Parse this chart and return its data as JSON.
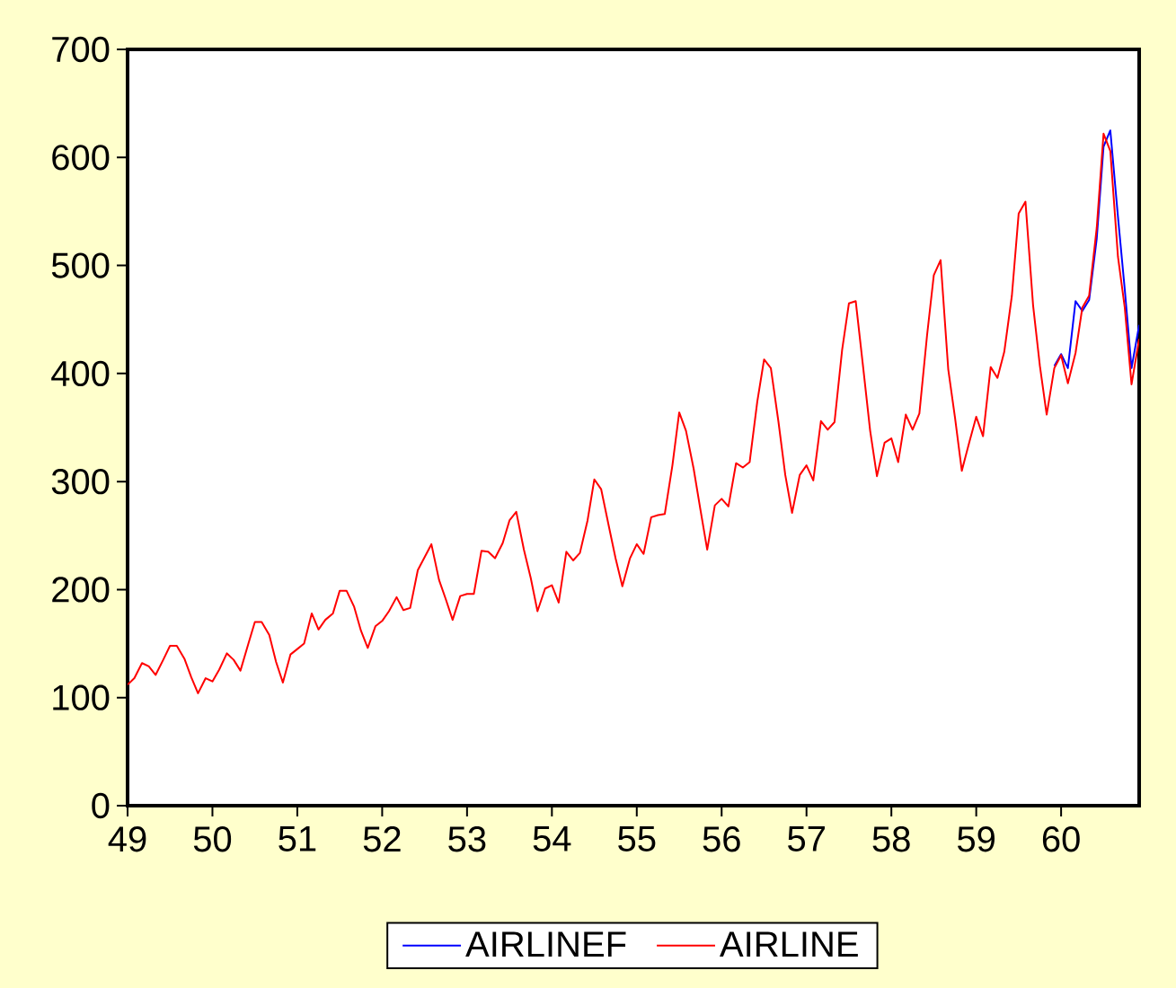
{
  "chart_data": {
    "type": "line",
    "x": [
      "1949-01",
      "1949-02",
      "1949-03",
      "1949-04",
      "1949-05",
      "1949-06",
      "1949-07",
      "1949-08",
      "1949-09",
      "1949-10",
      "1949-11",
      "1949-12",
      "1950-01",
      "1950-02",
      "1950-03",
      "1950-04",
      "1950-05",
      "1950-06",
      "1950-07",
      "1950-08",
      "1950-09",
      "1950-10",
      "1950-11",
      "1950-12",
      "1951-01",
      "1951-02",
      "1951-03",
      "1951-04",
      "1951-05",
      "1951-06",
      "1951-07",
      "1951-08",
      "1951-09",
      "1951-10",
      "1951-11",
      "1951-12",
      "1952-01",
      "1952-02",
      "1952-03",
      "1952-04",
      "1952-05",
      "1952-06",
      "1952-07",
      "1952-08",
      "1952-09",
      "1952-10",
      "1952-11",
      "1952-12",
      "1953-01",
      "1953-02",
      "1953-03",
      "1953-04",
      "1953-05",
      "1953-06",
      "1953-07",
      "1953-08",
      "1953-09",
      "1953-10",
      "1953-11",
      "1953-12",
      "1954-01",
      "1954-02",
      "1954-03",
      "1954-04",
      "1954-05",
      "1954-06",
      "1954-07",
      "1954-08",
      "1954-09",
      "1954-10",
      "1954-11",
      "1954-12",
      "1955-01",
      "1955-02",
      "1955-03",
      "1955-04",
      "1955-05",
      "1955-06",
      "1955-07",
      "1955-08",
      "1955-09",
      "1955-10",
      "1955-11",
      "1955-12",
      "1956-01",
      "1956-02",
      "1956-03",
      "1956-04",
      "1956-05",
      "1956-06",
      "1956-07",
      "1956-08",
      "1956-09",
      "1956-10",
      "1956-11",
      "1956-12",
      "1957-01",
      "1957-02",
      "1957-03",
      "1957-04",
      "1957-05",
      "1957-06",
      "1957-07",
      "1957-08",
      "1957-09",
      "1957-10",
      "1957-11",
      "1957-12",
      "1958-01",
      "1958-02",
      "1958-03",
      "1958-04",
      "1958-05",
      "1958-06",
      "1958-07",
      "1958-08",
      "1958-09",
      "1958-10",
      "1958-11",
      "1958-12",
      "1959-01",
      "1959-02",
      "1959-03",
      "1959-04",
      "1959-05",
      "1959-06",
      "1959-07",
      "1959-08",
      "1959-09",
      "1959-10",
      "1959-11",
      "1959-12",
      "1960-01",
      "1960-02",
      "1960-03",
      "1960-04",
      "1960-05",
      "1960-06",
      "1960-07",
      "1960-08",
      "1960-09",
      "1960-10",
      "1960-11",
      "1960-12"
    ],
    "series": [
      {
        "name": "AIRLINEF",
        "color": "#0000ff",
        "values": [
          null,
          null,
          null,
          null,
          null,
          null,
          null,
          null,
          null,
          null,
          null,
          null,
          null,
          null,
          null,
          null,
          null,
          null,
          null,
          null,
          null,
          null,
          null,
          null,
          null,
          null,
          null,
          null,
          null,
          null,
          null,
          null,
          null,
          null,
          null,
          null,
          null,
          null,
          null,
          null,
          null,
          null,
          null,
          null,
          null,
          null,
          null,
          null,
          null,
          null,
          null,
          null,
          null,
          null,
          null,
          null,
          null,
          null,
          null,
          null,
          null,
          null,
          null,
          null,
          null,
          null,
          null,
          null,
          null,
          null,
          null,
          null,
          null,
          null,
          null,
          null,
          null,
          null,
          null,
          null,
          null,
          null,
          null,
          null,
          null,
          null,
          null,
          null,
          null,
          null,
          null,
          null,
          null,
          null,
          null,
          null,
          null,
          null,
          null,
          null,
          null,
          null,
          null,
          null,
          null,
          null,
          null,
          null,
          null,
          null,
          null,
          null,
          null,
          null,
          null,
          null,
          null,
          null,
          null,
          null,
          null,
          null,
          null,
          null,
          null,
          null,
          null,
          null,
          null,
          null,
          null,
          407,
          418,
          405,
          467,
          458,
          468,
          525,
          610,
          625,
          545,
          478,
          405,
          445
        ]
      },
      {
        "name": "AIRLINE",
        "color": "#ff0000",
        "values": [
          112,
          118,
          132,
          129,
          121,
          135,
          148,
          148,
          136,
          119,
          104,
          118,
          115,
          126,
          141,
          135,
          125,
          149,
          170,
          170,
          158,
          133,
          114,
          140,
          145,
          150,
          178,
          163,
          172,
          178,
          199,
          199,
          184,
          162,
          146,
          166,
          171,
          180,
          193,
          181,
          183,
          218,
          230,
          242,
          209,
          191,
          172,
          194,
          196,
          196,
          236,
          235,
          229,
          243,
          264,
          272,
          237,
          211,
          180,
          201,
          204,
          188,
          235,
          227,
          234,
          264,
          302,
          293,
          259,
          229,
          203,
          229,
          242,
          233,
          267,
          269,
          270,
          315,
          364,
          347,
          312,
          274,
          237,
          278,
          284,
          277,
          317,
          313,
          318,
          374,
          413,
          405,
          355,
          306,
          271,
          306,
          315,
          301,
          356,
          348,
          355,
          422,
          465,
          467,
          404,
          347,
          305,
          336,
          340,
          318,
          362,
          348,
          363,
          435,
          491,
          505,
          404,
          359,
          310,
          337,
          360,
          342,
          406,
          396,
          420,
          472,
          548,
          559,
          463,
          407,
          362,
          405,
          417,
          391,
          419,
          461,
          472,
          535,
          622,
          606,
          508,
          461,
          390,
          432
        ]
      }
    ],
    "xlim": [
      "1949-01",
      "1960-12"
    ],
    "xticks": [
      {
        "value": "1949",
        "label": "49"
      },
      {
        "value": "1950",
        "label": "50"
      },
      {
        "value": "1951",
        "label": "51"
      },
      {
        "value": "1952",
        "label": "52"
      },
      {
        "value": "1953",
        "label": "53"
      },
      {
        "value": "1954",
        "label": "54"
      },
      {
        "value": "1955",
        "label": "55"
      },
      {
        "value": "1956",
        "label": "56"
      },
      {
        "value": "1957",
        "label": "57"
      },
      {
        "value": "1958",
        "label": "58"
      },
      {
        "value": "1959",
        "label": "59"
      },
      {
        "value": "1960",
        "label": "60"
      }
    ],
    "ylim": [
      0,
      700
    ],
    "yticks": [
      0,
      100,
      200,
      300,
      400,
      500,
      600,
      700
    ],
    "grid": false,
    "legend": "bottom",
    "marker": "none",
    "line_style": "solid"
  }
}
